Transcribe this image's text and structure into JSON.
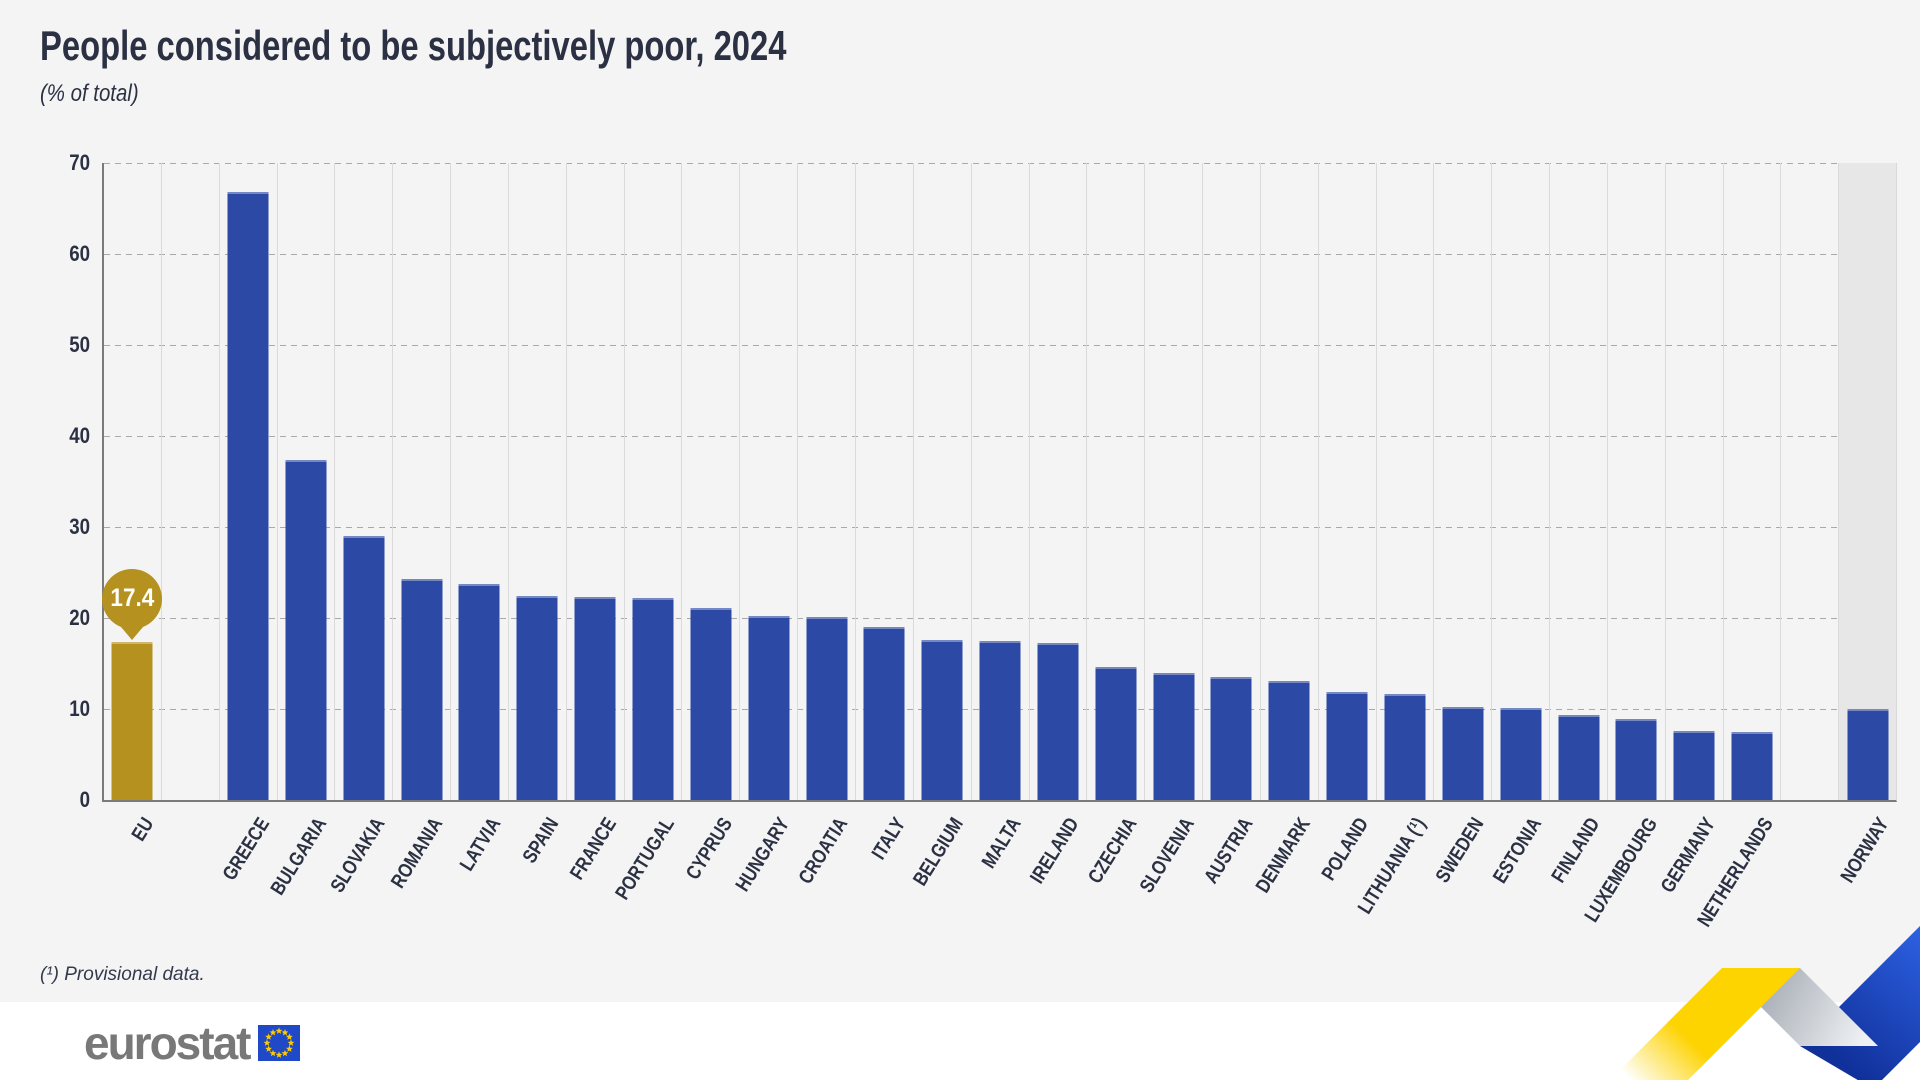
{
  "page": {
    "title": "People considered to be subjectively poor, 2024",
    "subtitle": "(% of total)",
    "footnote": "(¹) Provisional data."
  },
  "logo": {
    "text": "eurostat",
    "flag": "eu-flag-icon"
  },
  "colors": {
    "background": "#f4f4f4",
    "member_bar_blue": "#2b49a5",
    "eu_bar_gold": "#b5921f",
    "callout_gold": "#b5921f",
    "non_eu_band_gray": "#e7e7e7",
    "text_navy": "#2b3143",
    "axis_gray": "#7a7a7a",
    "logo_gray": "#787878",
    "flag_blue": "#1f49c7",
    "flag_star_yellow": "#ffcc00",
    "ribbon_yellow": "#fdd300",
    "ribbon_blue": "#2f64e8",
    "ribbon_blue_dark": "#10309a",
    "ribbon_silver": "#9aa1aa"
  },
  "chart_data": {
    "type": "bar",
    "title": "People considered to be subjectively poor, 2024",
    "unit": "(% of total)",
    "xlabel": "",
    "ylabel": "",
    "ylim": [
      0,
      70
    ],
    "yticks": [
      0,
      10,
      20,
      30,
      40,
      50,
      60,
      70
    ],
    "grid": "horizontal-dashed",
    "legend": "none",
    "highlight_callout": {
      "category": "EU",
      "label": "17.4"
    },
    "bars": [
      {
        "label": "EU",
        "value": 17.4,
        "role": "eu",
        "callout": "17.4"
      },
      {
        "spacer": true
      },
      {
        "label": "GREECE",
        "value": 66.8,
        "role": "member"
      },
      {
        "label": "BULGARIA",
        "value": 37.4,
        "role": "member"
      },
      {
        "label": "SLOVAKIA",
        "value": 29.0,
        "role": "member"
      },
      {
        "label": "ROMANIA",
        "value": 24.3,
        "role": "member"
      },
      {
        "label": "LATVIA",
        "value": 23.7,
        "role": "member"
      },
      {
        "label": "SPAIN",
        "value": 22.4,
        "role": "member"
      },
      {
        "label": "FRANCE",
        "value": 22.3,
        "role": "member"
      },
      {
        "label": "PORTUGAL",
        "value": 22.2,
        "role": "member"
      },
      {
        "label": "CYPRUS",
        "value": 21.1,
        "role": "member"
      },
      {
        "label": "HUNGARY",
        "value": 20.2,
        "role": "member"
      },
      {
        "label": "CROATIA",
        "value": 20.1,
        "role": "member"
      },
      {
        "label": "ITALY",
        "value": 19.0,
        "role": "member"
      },
      {
        "label": "BELGIUM",
        "value": 17.6,
        "role": "member"
      },
      {
        "label": "MALTA",
        "value": 17.5,
        "role": "member"
      },
      {
        "label": "IRELAND",
        "value": 17.3,
        "role": "member"
      },
      {
        "label": "CZECHIA",
        "value": 14.6,
        "role": "member"
      },
      {
        "label": "SLOVENIA",
        "value": 14.0,
        "role": "member"
      },
      {
        "label": "AUSTRIA",
        "value": 13.5,
        "role": "member"
      },
      {
        "label": "DENMARK",
        "value": 13.1,
        "role": "member"
      },
      {
        "label": "POLAND",
        "value": 11.9,
        "role": "member"
      },
      {
        "label": "LITHUANIA (¹)",
        "value": 11.7,
        "role": "member"
      },
      {
        "label": "SWEDEN",
        "value": 10.2,
        "role": "member"
      },
      {
        "label": "ESTONIA",
        "value": 10.1,
        "role": "member"
      },
      {
        "label": "FINLAND",
        "value": 9.3,
        "role": "member"
      },
      {
        "label": "LUXEMBOURG",
        "value": 8.9,
        "role": "member"
      },
      {
        "label": "GERMANY",
        "value": 7.6,
        "role": "member"
      },
      {
        "label": "NETHERLANDS",
        "value": 7.5,
        "role": "member"
      },
      {
        "spacer": true
      },
      {
        "label": "NORWAY",
        "value": 10.0,
        "role": "non-eu",
        "shaded": true
      }
    ]
  }
}
